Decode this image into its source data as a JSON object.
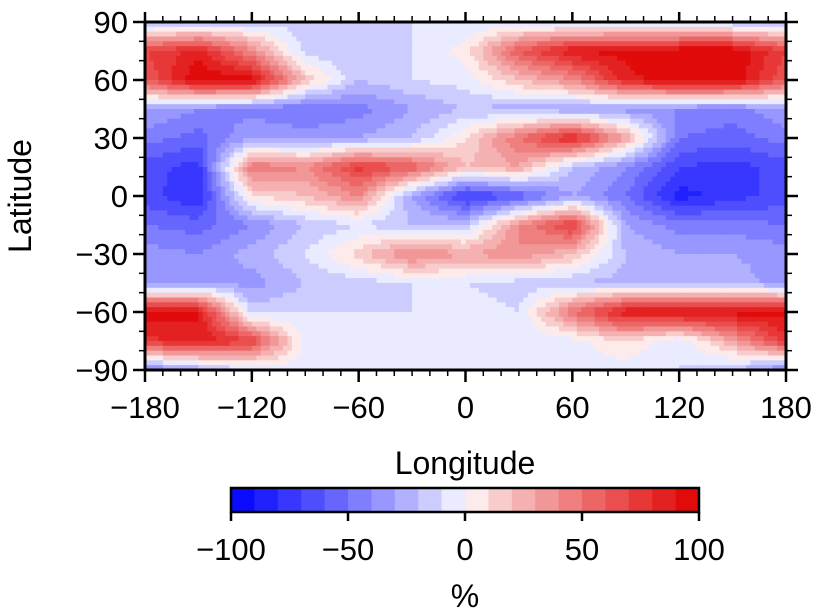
{
  "chart_data": {
    "type": "heatmap",
    "title": "",
    "xlabel": "Longitude",
    "ylabel": "Latitude",
    "xlim": [
      -180,
      180
    ],
    "ylim": [
      -90,
      90
    ],
    "x_ticks": [
      -180,
      -120,
      -60,
      0,
      60,
      120,
      180
    ],
    "y_ticks": [
      -90,
      -60,
      -30,
      0,
      30,
      60,
      90
    ],
    "x_tick_labels": [
      "−180",
      "−120",
      "−60",
      "0",
      "60",
      "120",
      "180"
    ],
    "y_tick_labels": [
      "−90",
      "−60",
      "−30",
      "0",
      "30",
      "60",
      "90"
    ],
    "colorbar": {
      "label": "%",
      "range": [
        -100,
        100
      ],
      "ticks": [
        -100,
        -50,
        0,
        50,
        100
      ],
      "tick_labels": [
        "−100",
        "−50",
        "0",
        "50",
        "100"
      ],
      "levels": 20,
      "low_color": "#0000ff",
      "mid_color": "#ffffff",
      "high_color": "#e00000"
    },
    "grid_lon": [
      -180,
      -150,
      -120,
      -90,
      -60,
      -30,
      0,
      30,
      60,
      90,
      120,
      150,
      180
    ],
    "grid_lat": [
      90,
      75,
      60,
      45,
      30,
      15,
      0,
      -15,
      -30,
      -45,
      -60,
      -75,
      -90
    ],
    "values": [
      [
        -25,
        -20,
        -15,
        -15,
        -15,
        -10,
        -10,
        -10,
        -15,
        -15,
        -20,
        -20,
        -25
      ],
      [
        70,
        85,
        40,
        -15,
        -20,
        -10,
        5,
        60,
        90,
        95,
        100,
        100,
        70
      ],
      [
        60,
        100,
        95,
        20,
        -20,
        -10,
        -5,
        20,
        40,
        85,
        100,
        100,
        60
      ],
      [
        -30,
        -40,
        -45,
        -50,
        -45,
        -30,
        -20,
        -25,
        -30,
        -35,
        -40,
        -45,
        -30
      ],
      [
        -45,
        -55,
        -30,
        -35,
        -30,
        -20,
        10,
        50,
        85,
        30,
        -50,
        -55,
        -45
      ],
      [
        -65,
        -75,
        50,
        40,
        75,
        60,
        20,
        30,
        -20,
        -40,
        -70,
        -75,
        -65
      ],
      [
        -65,
        -80,
        10,
        20,
        40,
        -30,
        -75,
        -60,
        -30,
        -50,
        -85,
        -75,
        -65
      ],
      [
        -50,
        -55,
        -40,
        -20,
        -10,
        -20,
        -20,
        40,
        75,
        -30,
        -45,
        -45,
        -50
      ],
      [
        -35,
        -40,
        -25,
        -10,
        15,
        45,
        30,
        40,
        20,
        -20,
        -30,
        -30,
        -35
      ],
      [
        -35,
        -30,
        -35,
        -20,
        -15,
        -10,
        -10,
        -15,
        -20,
        -25,
        -20,
        -25,
        -35
      ],
      [
        95,
        90,
        -15,
        -10,
        -10,
        -10,
        -5,
        -10,
        50,
        90,
        95,
        95,
        95
      ],
      [
        75,
        90,
        70,
        -5,
        -5,
        -5,
        -10,
        -10,
        -5,
        10,
        -10,
        30,
        75
      ],
      [
        -45,
        -30,
        -10,
        -5,
        -5,
        -5,
        -5,
        -5,
        -5,
        -5,
        -10,
        -20,
        -45
      ]
    ]
  }
}
